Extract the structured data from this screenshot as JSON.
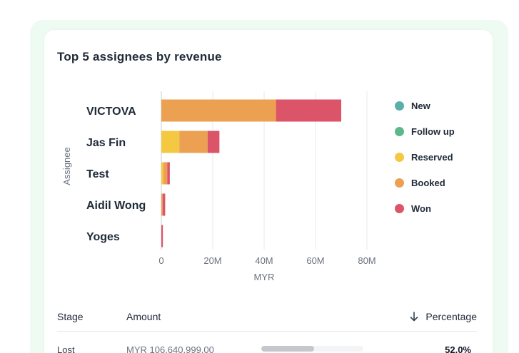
{
  "card": {
    "title": "Top 5 assignees by revenue"
  },
  "chart_data": {
    "type": "bar",
    "orientation": "horizontal",
    "stacked": true,
    "categories": [
      "VICTOVA",
      "Jas Fin",
      "Test",
      "Aidil Wong",
      "Yoges"
    ],
    "series": [
      {
        "name": "New",
        "color": "#5aafaa",
        "values": [
          0,
          0,
          0,
          0,
          0
        ]
      },
      {
        "name": "Follow up",
        "color": "#5cb88a",
        "values": [
          0,
          0,
          0,
          0,
          0
        ]
      },
      {
        "name": "Reserved",
        "color": "#f5c842",
        "values": [
          0,
          7,
          0.8,
          0,
          0
        ]
      },
      {
        "name": "Booked",
        "color": "#eba052",
        "values": [
          44.6,
          11,
          1.5,
          0.5,
          0
        ]
      },
      {
        "name": "Won",
        "color": "#dc5468",
        "values": [
          25.4,
          4.6,
          1.0,
          1.0,
          0.6
        ]
      }
    ],
    "xlabel": "MYR",
    "ylabel": "Assignee",
    "xlim": [
      0,
      80
    ],
    "xticks": [
      "0",
      "20M",
      "40M",
      "60M",
      "80M"
    ],
    "grid": true,
    "legend_position": "right"
  },
  "table": {
    "headers": {
      "stage": "Stage",
      "amount": "Amount",
      "percentage": "Percentage"
    },
    "sort_icon": "arrow-down-icon",
    "rows": [
      {
        "stage": "Lost",
        "amount": "MYR 106,640,999.00",
        "percentage": "52.0%",
        "share": 0.52
      }
    ]
  }
}
